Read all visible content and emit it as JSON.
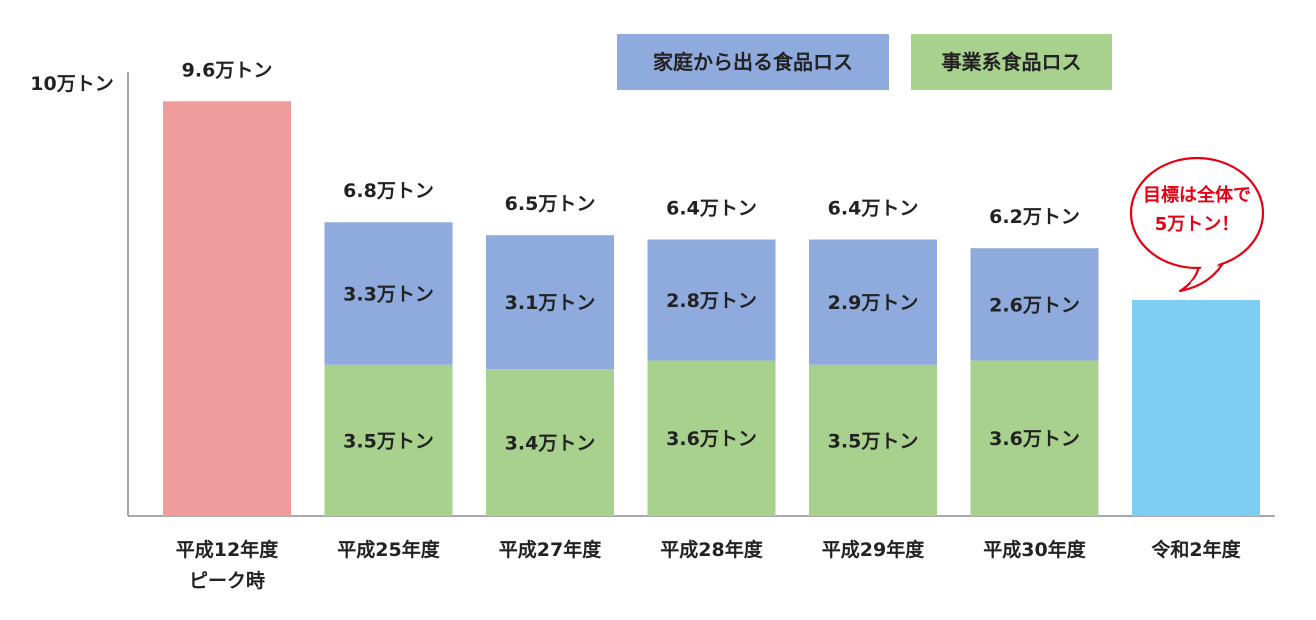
{
  "chart_data": {
    "type": "bar",
    "y_axis_label": "10万トン",
    "ylim": [
      0,
      10
    ],
    "grid": false,
    "legend_position": "top-right",
    "categories": [
      [
        "平成12年度",
        "ピーク時"
      ],
      [
        "平成25年度"
      ],
      [
        "平成27年度"
      ],
      [
        "平成28年度"
      ],
      [
        "平成29年度"
      ],
      [
        "平成30年度"
      ],
      [
        "令和2年度"
      ]
    ],
    "series": [
      {
        "name": "事業系食品ロス",
        "color": "#a9d18e",
        "values": [
          null,
          3.5,
          3.4,
          3.6,
          3.5,
          3.6,
          null
        ],
        "labels": [
          "",
          "3.5万トン",
          "3.4万トン",
          "3.6万トン",
          "3.5万トン",
          "3.6万トン",
          ""
        ]
      },
      {
        "name": "家庭から出る食品ロス",
        "color": "#8faadc",
        "values": [
          null,
          3.3,
          3.1,
          2.8,
          2.9,
          2.6,
          null
        ],
        "labels": [
          "",
          "3.3万トン",
          "3.1万トン",
          "2.8万トン",
          "2.9万トン",
          "2.6万トン",
          ""
        ]
      }
    ],
    "single_bars": [
      {
        "index": 0,
        "value": 9.6,
        "color": "#f19c9c"
      },
      {
        "index": 6,
        "value": 5.0,
        "color": "#7ecef4"
      }
    ],
    "totals": [
      9.6,
      6.8,
      6.5,
      6.4,
      6.4,
      6.2,
      null
    ],
    "total_labels": [
      "9.6万トン",
      "6.8万トン",
      "6.5万トン",
      "6.4万トン",
      "6.4万トン",
      "6.2万トン",
      ""
    ],
    "legend": [
      {
        "label": "家庭から出る食品ロス",
        "color": "#8faadc"
      },
      {
        "label": "事業系食品ロス",
        "color": "#a9d18e"
      }
    ],
    "annotation": {
      "lines": [
        "目標は全体で",
        "5万トン！"
      ],
      "color": "#e60012",
      "target_index": 6
    }
  }
}
